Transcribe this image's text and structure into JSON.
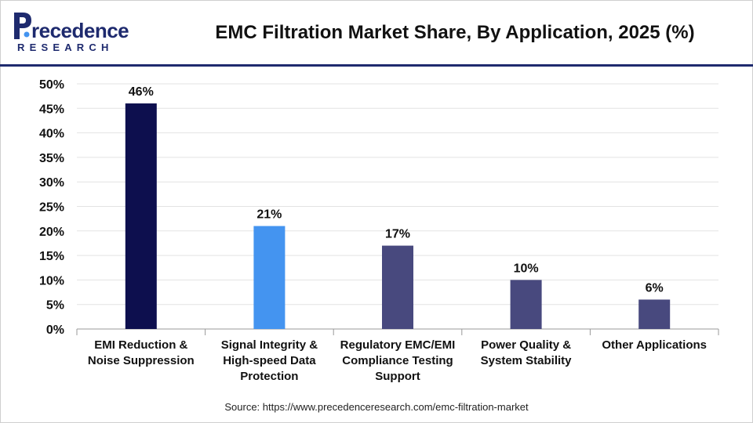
{
  "logo": {
    "word": "recedence",
    "sub": "RESEARCH"
  },
  "header": {
    "title": "EMC Filtration Market Share, By Application, 2025 (%)"
  },
  "source": "Source: https://www.precedenceresearch.com/emc-filtration-market",
  "colors": {
    "brand": "#1e2a6e",
    "bar_dark": "#0d0f4e",
    "bar_blue": "#4494f0",
    "bar_slate": "#48497e",
    "grid": "#e3e3e3",
    "axis": "#999999"
  },
  "chart_data": {
    "type": "bar",
    "title": "EMC Filtration Market Share, By Application, 2025 (%)",
    "xlabel": "",
    "ylabel": "",
    "ylim": [
      0,
      50
    ],
    "yticks": [
      0,
      5,
      10,
      15,
      20,
      25,
      30,
      35,
      40,
      45,
      50
    ],
    "ytick_labels": [
      "0%",
      "5%",
      "10%",
      "15%",
      "20%",
      "25%",
      "30%",
      "35%",
      "40%",
      "45%",
      "50%"
    ],
    "grid": true,
    "categories": [
      [
        "EMI Reduction &",
        "Noise Suppression"
      ],
      [
        "Signal Integrity &",
        "High-speed Data",
        "Protection"
      ],
      [
        "Regulatory EMC/EMI",
        "Compliance Testing",
        "Support"
      ],
      [
        "Power Quality &",
        "System Stability"
      ],
      [
        "Other Applications"
      ]
    ],
    "values": [
      46,
      21,
      17,
      10,
      6
    ],
    "data_labels": [
      "46%",
      "21%",
      "17%",
      "10%",
      "6%"
    ],
    "bar_colors": [
      "#0d0f4e",
      "#4494f0",
      "#48497e",
      "#48497e",
      "#48497e"
    ]
  }
}
